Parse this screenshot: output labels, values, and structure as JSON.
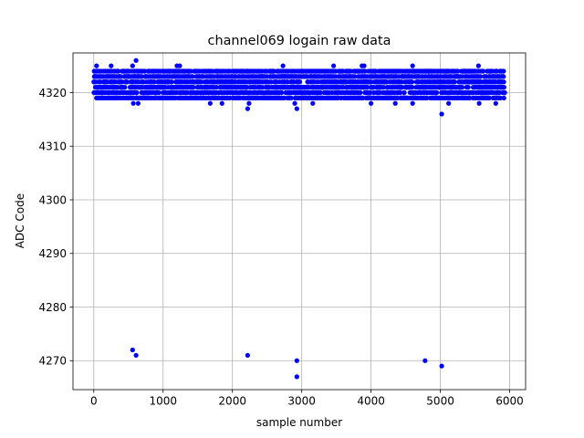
{
  "chart_data": {
    "type": "scatter",
    "title": "channel069 logain raw data",
    "xlabel": "sample number",
    "ylabel": "ADC Code",
    "xlim": [
      -300,
      6230
    ],
    "ylim": [
      4264.6,
      4327.4
    ],
    "xticks": [
      0,
      1000,
      2000,
      3000,
      4000,
      5000,
      6000
    ],
    "yticks": [
      4270,
      4280,
      4290,
      4300,
      4310,
      4320
    ],
    "grid": true,
    "marker_color": "#0000ff",
    "series": [
      {
        "n_samples": 6000,
        "band": {
          "x_range": [
            0,
            5930
          ],
          "typical_range": [
            4319,
            4324
          ],
          "sparse_highs": [
            {
              "x": 40,
              "y": 4325
            },
            {
              "x": 250,
              "y": 4325
            },
            {
              "x": 560,
              "y": 4325
            },
            {
              "x": 610,
              "y": 4326
            },
            {
              "x": 1200,
              "y": 4325
            },
            {
              "x": 1240,
              "y": 4325
            },
            {
              "x": 2730,
              "y": 4325
            },
            {
              "x": 3460,
              "y": 4325
            },
            {
              "x": 3870,
              "y": 4325
            },
            {
              "x": 3900,
              "y": 4325
            },
            {
              "x": 4600,
              "y": 4325
            },
            {
              "x": 5550,
              "y": 4325
            }
          ],
          "sparse_lows": [
            {
              "x": 570,
              "y": 4318
            },
            {
              "x": 640,
              "y": 4318
            },
            {
              "x": 1680,
              "y": 4318
            },
            {
              "x": 1850,
              "y": 4318
            },
            {
              "x": 2220,
              "y": 4317
            },
            {
              "x": 2240,
              "y": 4318
            },
            {
              "x": 2900,
              "y": 4318
            },
            {
              "x": 2930,
              "y": 4317
            },
            {
              "x": 3160,
              "y": 4318
            },
            {
              "x": 4000,
              "y": 4318
            },
            {
              "x": 4350,
              "y": 4318
            },
            {
              "x": 4600,
              "y": 4318
            },
            {
              "x": 5020,
              "y": 4316
            },
            {
              "x": 5120,
              "y": 4318
            },
            {
              "x": 5560,
              "y": 4318
            },
            {
              "x": 5800,
              "y": 4318
            }
          ]
        },
        "outliers": [
          {
            "x": 560,
            "y": 4272
          },
          {
            "x": 610,
            "y": 4271
          },
          {
            "x": 2220,
            "y": 4271
          },
          {
            "x": 2930,
            "y": 4270
          },
          {
            "x": 2930,
            "y": 4267
          },
          {
            "x": 4780,
            "y": 4270
          },
          {
            "x": 5020,
            "y": 4269
          }
        ]
      }
    ]
  }
}
